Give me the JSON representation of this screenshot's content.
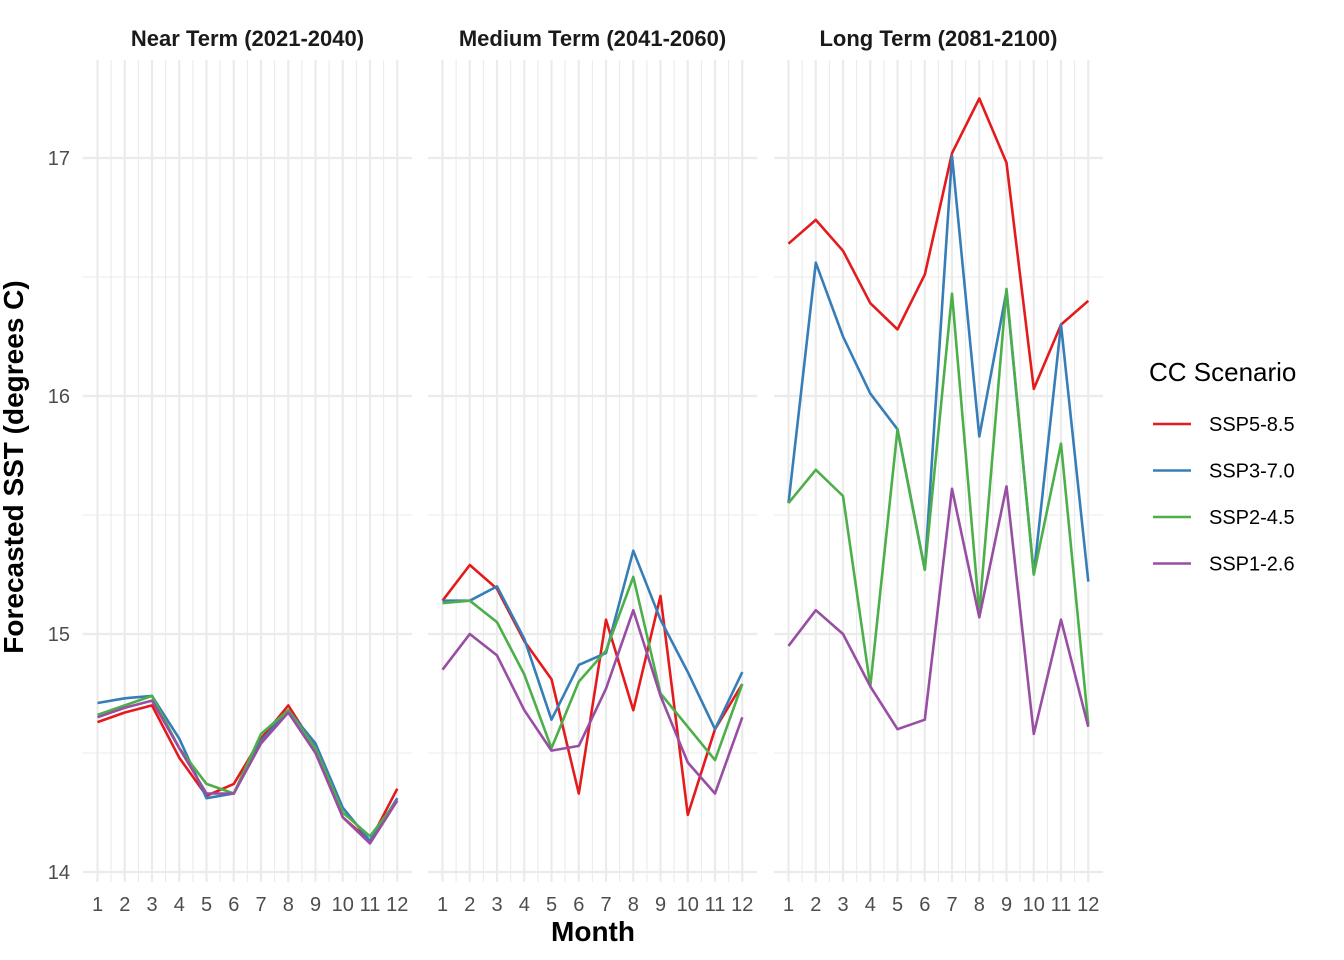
{
  "chart_data": {
    "type": "line",
    "xlabel": "Month",
    "ylabel": "Forecasted SST (degrees C)",
    "ylim": [
      13.95,
      17.4
    ],
    "yticks": [
      14,
      15,
      16,
      17
    ],
    "xticks": [
      "1",
      "2",
      "3",
      "4",
      "5",
      "6",
      "7",
      "8",
      "9",
      "10",
      "11",
      "12"
    ],
    "grid": true,
    "legend": {
      "title": "CC Scenario",
      "placement": "right",
      "entries": [
        {
          "name": "SSP5-8.5",
          "color": "#e41a1c"
        },
        {
          "name": "SSP3-7.0",
          "color": "#377eb8"
        },
        {
          "name": "SSP2-4.5",
          "color": "#4daf4a"
        },
        {
          "name": "SSP1-2.6",
          "color": "#984ea3"
        }
      ]
    },
    "facets": [
      {
        "title": "Near Term (2021-2040)",
        "series": [
          {
            "name": "SSP5-8.5",
            "values": [
              14.63,
              14.67,
              14.7,
              14.48,
              14.32,
              14.37,
              14.56,
              14.7,
              14.52,
              14.23,
              14.13,
              14.35
            ]
          },
          {
            "name": "SSP3-7.0",
            "values": [
              14.71,
              14.73,
              14.74,
              14.56,
              14.31,
              14.33,
              14.55,
              14.68,
              14.54,
              14.27,
              14.13,
              14.31
            ]
          },
          {
            "name": "SSP2-4.5",
            "values": [
              14.66,
              14.7,
              14.74,
              14.52,
              14.37,
              14.33,
              14.58,
              14.68,
              14.52,
              14.25,
              14.15,
              14.3
            ]
          },
          {
            "name": "SSP1-2.6",
            "values": [
              14.65,
              14.69,
              14.72,
              14.52,
              14.33,
              14.33,
              14.54,
              14.67,
              14.5,
              14.23,
              14.12,
              14.3
            ]
          }
        ]
      },
      {
        "title": "Medium Term (2041-2060)",
        "series": [
          {
            "name": "SSP5-8.5",
            "values": [
              15.14,
              15.29,
              15.19,
              14.97,
              14.81,
              14.33,
              15.06,
              14.68,
              15.16,
              14.24,
              14.6,
              14.79
            ]
          },
          {
            "name": "SSP3-7.0",
            "values": [
              15.14,
              15.14,
              15.2,
              14.98,
              14.64,
              14.87,
              14.92,
              15.35,
              15.06,
              14.84,
              14.6,
              14.84
            ]
          },
          {
            "name": "SSP2-4.5",
            "values": [
              15.13,
              15.14,
              15.05,
              14.83,
              14.52,
              14.8,
              14.93,
              15.24,
              14.75,
              14.61,
              14.47,
              14.79
            ]
          },
          {
            "name": "SSP1-2.6",
            "values": [
              14.85,
              15.0,
              14.91,
              14.68,
              14.51,
              14.53,
              14.77,
              15.1,
              14.74,
              14.46,
              14.33,
              14.65
            ]
          }
        ]
      },
      {
        "title": "Long Term (2081-2100)",
        "series": [
          {
            "name": "SSP5-8.5",
            "values": [
              16.64,
              16.74,
              16.61,
              16.39,
              16.28,
              16.51,
              17.02,
              17.25,
              16.98,
              16.03,
              16.3,
              16.4
            ]
          },
          {
            "name": "SSP3-7.0",
            "values": [
              15.55,
              16.56,
              16.25,
              16.01,
              15.86,
              15.27,
              17.01,
              15.83,
              16.44,
              15.25,
              16.3,
              15.22
            ]
          },
          {
            "name": "SSP2-4.5",
            "values": [
              15.55,
              15.69,
              15.58,
              14.78,
              15.86,
              15.27,
              16.43,
              15.09,
              16.45,
              15.25,
              15.8,
              14.62
            ]
          },
          {
            "name": "SSP1-2.6",
            "values": [
              14.95,
              15.1,
              15.0,
              14.78,
              14.6,
              14.64,
              15.61,
              15.07,
              15.62,
              14.58,
              15.06,
              14.61
            ]
          }
        ]
      }
    ]
  }
}
